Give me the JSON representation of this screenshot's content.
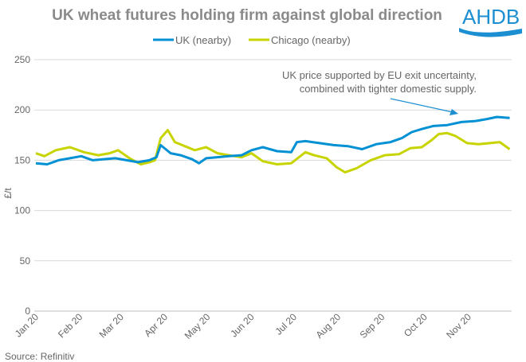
{
  "logo_text": "AHDB",
  "source": "Source: Refinitiv",
  "chart_data": {
    "type": "line",
    "title": "UK wheat futures holding firm against global direction",
    "ylabel": "£/t",
    "xlabel": "",
    "ylim": [
      0,
      250
    ],
    "yticks": [
      0,
      50,
      100,
      150,
      200,
      250
    ],
    "grid": true,
    "legend_position": "top",
    "xtick_labels": [
      "Jan 20",
      "Feb 20",
      "Mar 20",
      "Apr 20",
      "May 20",
      "Jun 20",
      "Jul 20",
      "Aug 20",
      "Sep 20",
      "Oct 20",
      "Nov 20"
    ],
    "xtick_days": [
      0,
      31,
      60,
      91,
      121,
      152,
      182,
      213,
      244,
      274,
      305
    ],
    "x_unit": "day of 2020",
    "annotation": [
      "UK price supported by EU exit uncertainty,",
      "combined with tighter domestic supply."
    ],
    "series": [
      {
        "name": "UK (nearby)",
        "color": "#0090d4",
        "x": [
          0,
          8,
          16,
          24,
          32,
          40,
          48,
          56,
          64,
          72,
          80,
          85,
          88,
          95,
          102,
          110,
          115,
          120,
          128,
          136,
          145,
          152,
          160,
          170,
          180,
          184,
          190,
          200,
          210,
          220,
          230,
          240,
          250,
          258,
          265,
          272,
          280,
          290,
          300,
          310,
          318,
          325,
          334
        ],
        "y": [
          147,
          146,
          150,
          152,
          154,
          150,
          151,
          152,
          150,
          148,
          150,
          153,
          165,
          157,
          155,
          151,
          147,
          152,
          153,
          154,
          155,
          160,
          163,
          159,
          158,
          168,
          169,
          167,
          165,
          164,
          161,
          166,
          168,
          172,
          178,
          181,
          184,
          185,
          188,
          189,
          191,
          193,
          192
        ]
      },
      {
        "name": "Chicago (nearby)",
        "color": "#c8d400",
        "x": [
          0,
          6,
          14,
          24,
          34,
          44,
          52,
          58,
          66,
          74,
          80,
          84,
          88,
          93,
          98,
          105,
          112,
          120,
          128,
          136,
          145,
          152,
          160,
          170,
          180,
          190,
          196,
          205,
          212,
          218,
          226,
          236,
          246,
          256,
          264,
          272,
          279,
          284,
          290,
          296,
          304,
          312,
          320,
          327,
          334
        ],
        "y": [
          157,
          154,
          160,
          163,
          158,
          155,
          157,
          160,
          152,
          146,
          148,
          150,
          172,
          180,
          168,
          164,
          160,
          163,
          157,
          155,
          153,
          157,
          149,
          146,
          147,
          158,
          155,
          152,
          143,
          138,
          142,
          150,
          155,
          156,
          162,
          163,
          170,
          176,
          177,
          174,
          167,
          166,
          167,
          168,
          161
        ]
      }
    ]
  }
}
